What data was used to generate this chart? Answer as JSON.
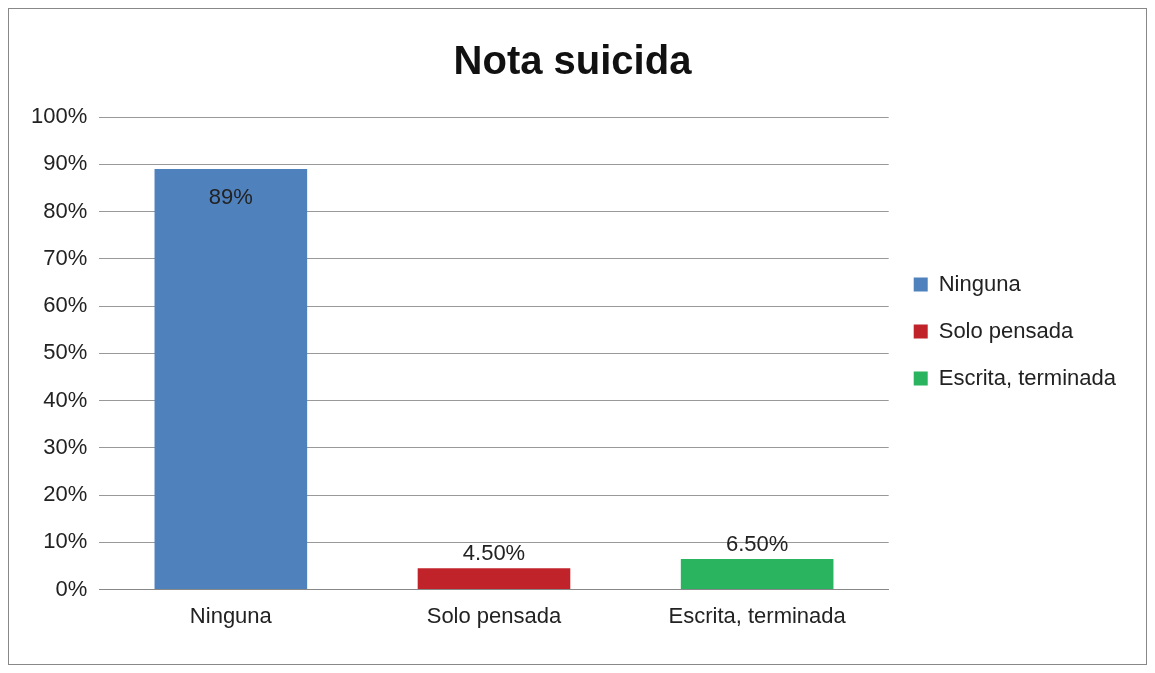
{
  "chart_data": {
    "type": "bar",
    "title": "Nota suicida",
    "categories": [
      "Ninguna",
      "Solo pensada",
      "Escrita, terminada"
    ],
    "series": [
      {
        "name": "Ninguna",
        "color": "#4f81bd",
        "values": [
          89,
          null,
          null
        ],
        "value_labels": [
          "89%",
          null,
          null
        ]
      },
      {
        "name": "Solo pensada",
        "color": "#c0232a",
        "values": [
          null,
          4.5,
          null
        ],
        "value_labels": [
          null,
          "4.50%",
          null
        ]
      },
      {
        "name": "Escrita, terminada",
        "color": "#2bb45f",
        "values": [
          null,
          null,
          6.5
        ],
        "value_labels": [
          null,
          null,
          "6.50%"
        ]
      }
    ],
    "ylim": [
      0,
      100
    ],
    "yticks": [
      {
        "value": 0,
        "label": "0%"
      },
      {
        "value": 10,
        "label": "10%"
      },
      {
        "value": 20,
        "label": "20%"
      },
      {
        "value": 30,
        "label": "30%"
      },
      {
        "value": 40,
        "label": "40%"
      },
      {
        "value": 50,
        "label": "50%"
      },
      {
        "value": 60,
        "label": "60%"
      },
      {
        "value": 70,
        "label": "70%"
      },
      {
        "value": 80,
        "label": "80%"
      },
      {
        "value": 90,
        "label": "90%"
      },
      {
        "value": 100,
        "label": "100%"
      }
    ],
    "grid": "y",
    "legend": "right"
  }
}
